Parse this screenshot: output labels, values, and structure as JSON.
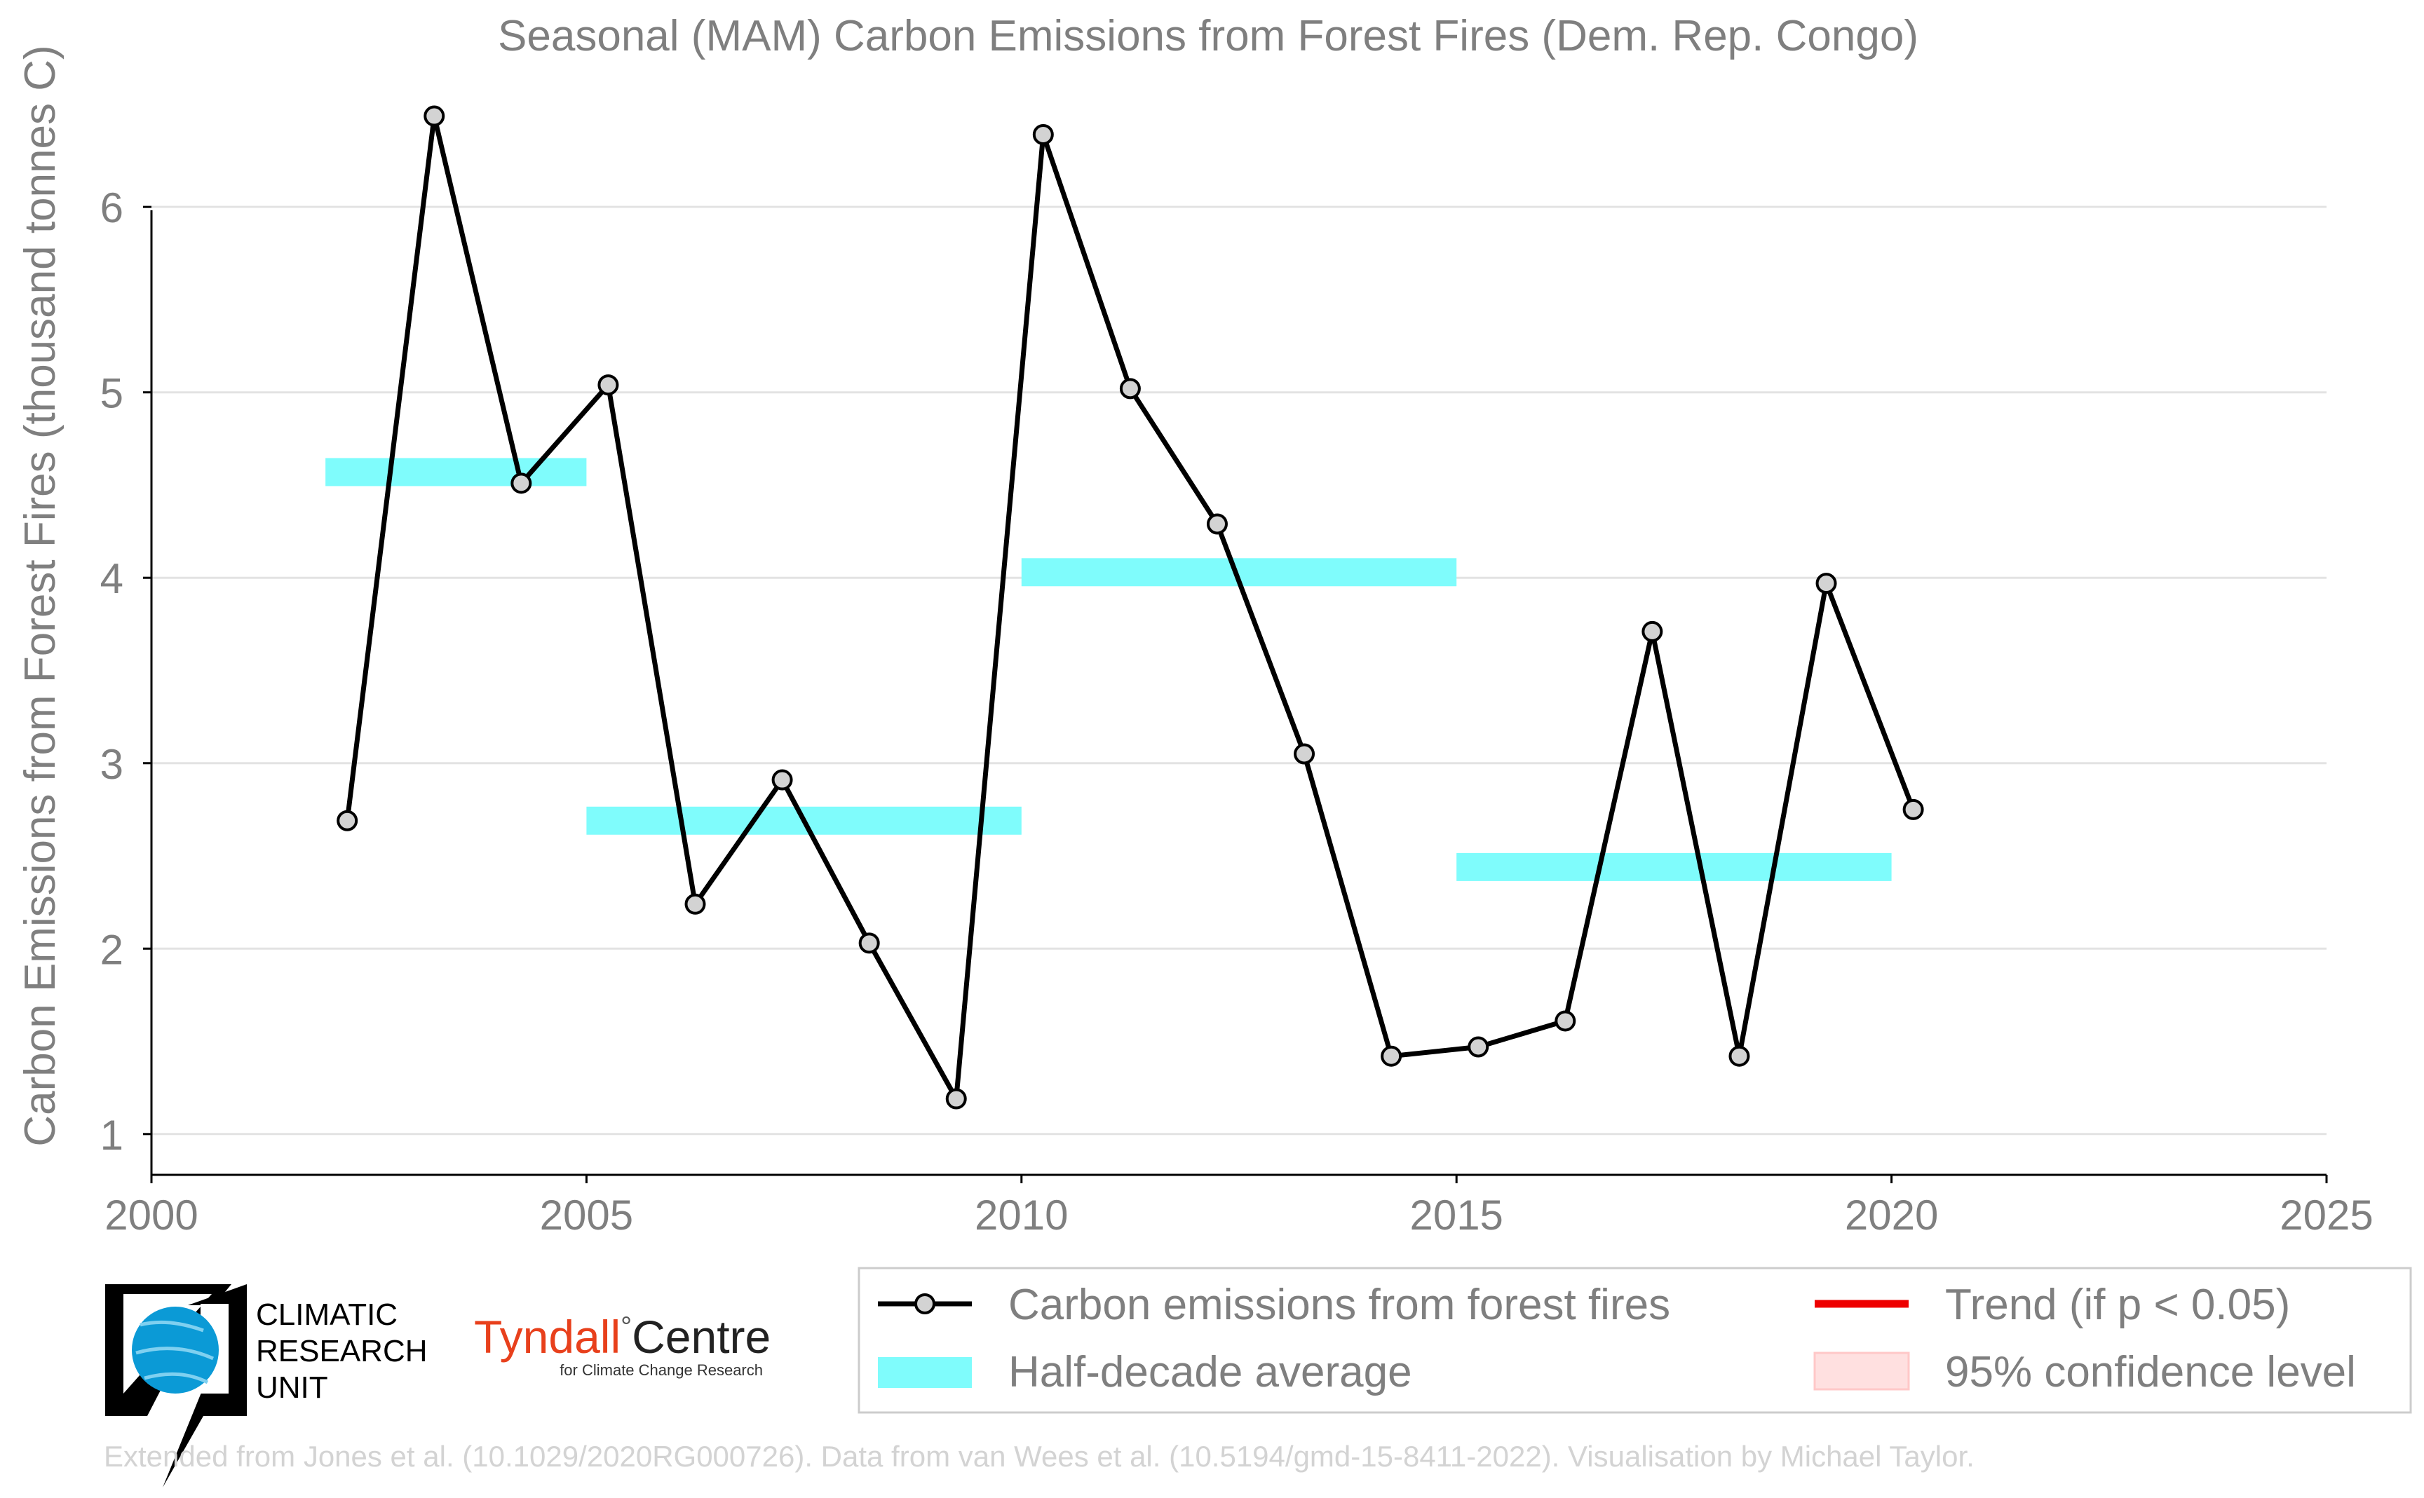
{
  "colors": {
    "text": "#7f7f7f",
    "grid": "#e3e3e3",
    "axis": "#000000",
    "series_line": "#000000",
    "marker_fill": "#d3d3d3",
    "half_decade": "#7ffcfc",
    "trend": "#ee0000",
    "confidence": "#ffe0e0",
    "cru_logo": "#0b9ad6",
    "tyndall_red": "#e8401c",
    "credit": "#d3d3d3"
  },
  "legend": {
    "series": "Carbon emissions from forest fires",
    "half_decade": "Half-decade average",
    "trend": "Trend (if p < 0.05)",
    "confidence": "95% confidence level"
  },
  "logos": {
    "cru": {
      "icon": "globe-icon",
      "line1": "CLIMATIC",
      "line2": "RESEARCH",
      "line3": "UNIT"
    },
    "tyndall": {
      "name_a": "Tyndall",
      "degree": "°",
      "name_b": "Centre",
      "sub": "for Climate Change Research"
    }
  },
  "credit": "Extended from Jones et al. (10.1029/2020RG000726). Data from van Wees et al. (10.5194/gmd-15-8411-2022). Visualisation by Michael Taylor.",
  "chart_data": {
    "type": "line",
    "title": "Seasonal (MAM) Carbon Emissions from Forest Fires (Dem. Rep. Congo)",
    "xlabel": "",
    "ylabel": "Carbon Emissions from Forest Fires (thousand tonnes C)",
    "xlim": [
      2000,
      2025
    ],
    "ylim": [
      0.78,
      6.7
    ],
    "xticks": [
      2000,
      2005,
      2010,
      2015,
      2020,
      2025
    ],
    "yticks": [
      1,
      2,
      3,
      4,
      5,
      6
    ],
    "grid": "horizontal",
    "legend_position": "bottom-right",
    "series": [
      {
        "name": "Carbon emissions from forest fires",
        "x": [
          2002.25,
          2003.25,
          2004.25,
          2005.25,
          2006.25,
          2007.25,
          2008.25,
          2009.25,
          2010.25,
          2011.25,
          2012.25,
          2013.25,
          2014.25,
          2015.25,
          2016.25,
          2017.25,
          2018.25,
          2019.25,
          2020.25
        ],
        "y": [
          2.69,
          6.49,
          4.51,
          5.04,
          2.24,
          2.91,
          2.03,
          1.19,
          6.39,
          5.02,
          4.29,
          3.05,
          1.42,
          1.47,
          1.61,
          3.71,
          1.42,
          3.97,
          2.75
        ]
      }
    ],
    "half_decade_averages": [
      {
        "start": 2002,
        "end": 2005,
        "value": 4.57
      },
      {
        "start": 2005,
        "end": 2010,
        "value": 2.69
      },
      {
        "start": 2010,
        "end": 2015,
        "value": 4.03
      },
      {
        "start": 2015,
        "end": 2020,
        "value": 2.44
      }
    ]
  }
}
